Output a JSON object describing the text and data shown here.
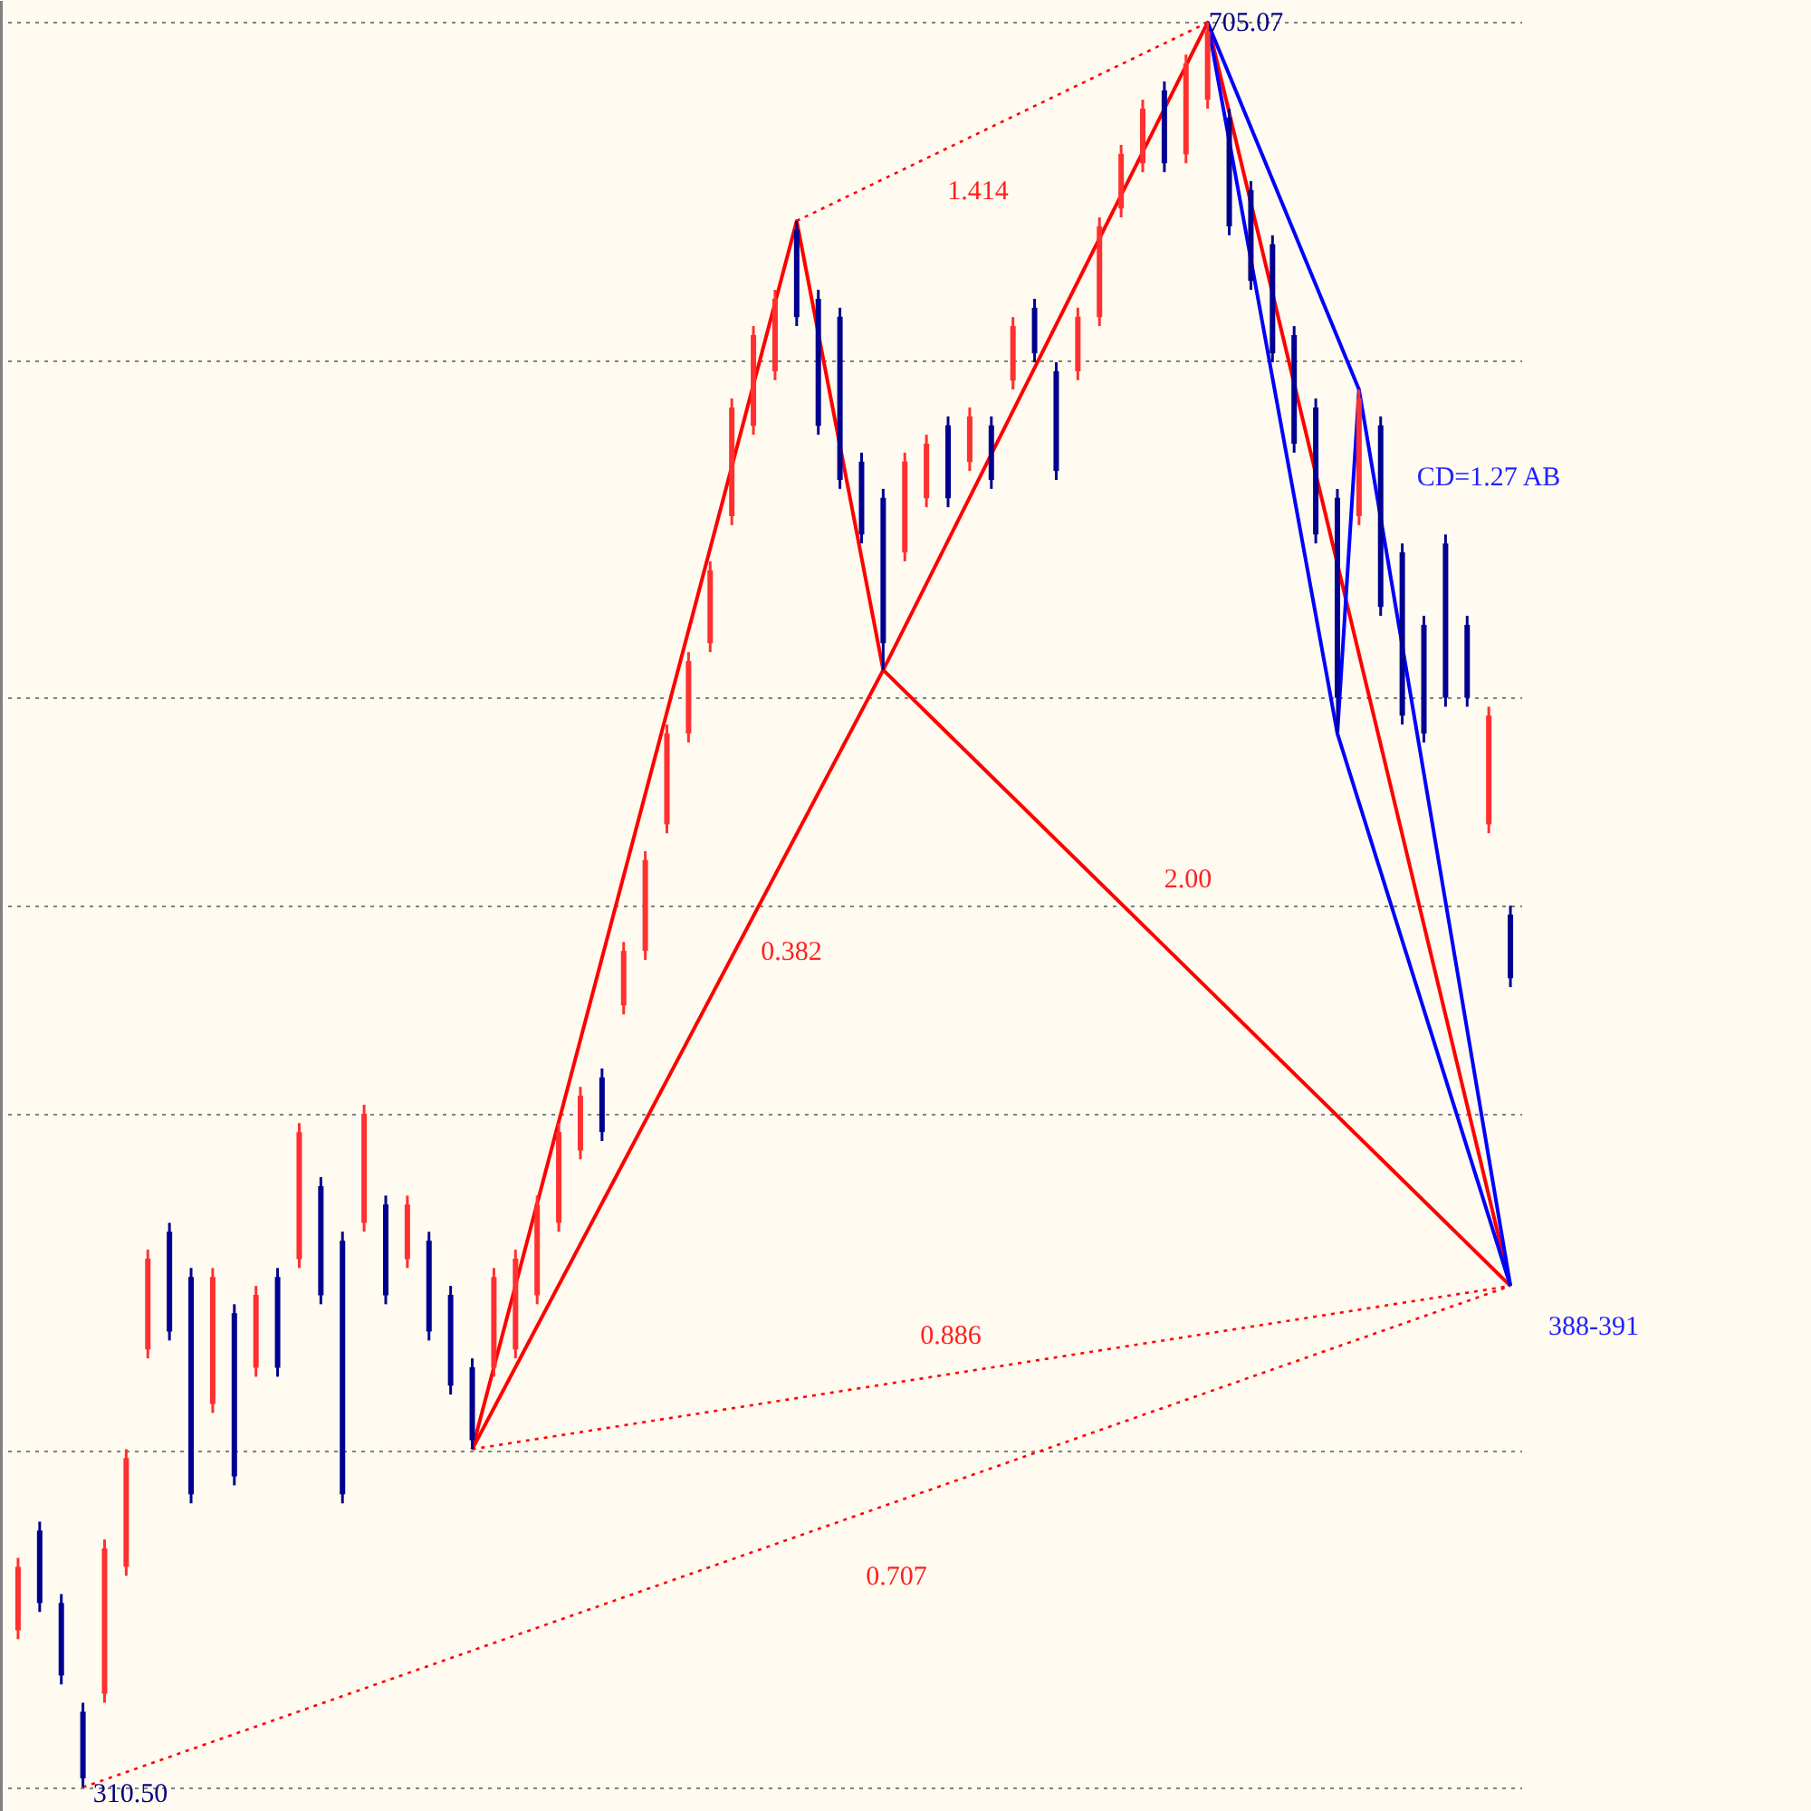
{
  "chart_data": {
    "type": "candlestick",
    "categories": [
      null,
      null,
      null,
      null,
      null,
      null,
      null,
      null,
      null,
      null,
      null,
      null,
      null,
      null,
      null,
      null,
      null,
      null,
      null,
      null,
      null,
      null,
      null,
      null,
      null,
      null,
      null,
      null,
      null,
      null,
      null,
      null,
      null,
      null,
      null,
      null,
      null,
      null,
      null,
      null,
      null,
      null,
      null,
      null,
      null,
      null,
      null,
      null,
      null,
      null,
      null,
      null,
      null,
      null,
      null,
      null,
      null,
      null,
      null,
      null,
      null,
      null,
      null,
      null,
      null,
      null,
      null,
      null,
      null,
      null
    ],
    "ohlc": [
      [
        345.6,
        361.8,
        343.6,
        359.8
      ],
      [
        367.9,
        369.9,
        349.7,
        351.7
      ],
      [
        351.7,
        353.7,
        333.5,
        335.5
      ],
      [
        327.4,
        329.4,
        310.5,
        312.5
      ],
      [
        331.4,
        365.9,
        329.4,
        363.9
      ],
      [
        359.8,
        386.1,
        357.8,
        384.1
      ],
      [
        408.4,
        430.7,
        406.4,
        428.7
      ],
      [
        434.7,
        436.7,
        410.4,
        412.4
      ],
      [
        424.6,
        426.6,
        374.0,
        376.0
      ],
      [
        396.2,
        426.6,
        394.2,
        424.6
      ],
      [
        416.5,
        418.5,
        378.0,
        380.0
      ],
      [
        404.3,
        422.6,
        402.3,
        420.6
      ],
      [
        424.6,
        426.6,
        402.3,
        404.3
      ],
      [
        428.6,
        459.0,
        426.6,
        457.0
      ],
      [
        444.9,
        446.9,
        418.5,
        420.5
      ],
      [
        432.7,
        434.7,
        374.0,
        376.0
      ],
      [
        436.7,
        463.1,
        434.7,
        461.1
      ],
      [
        440.8,
        442.8,
        418.5,
        420.5
      ],
      [
        428.6,
        442.8,
        426.6,
        440.8
      ],
      [
        432.7,
        434.7,
        410.4,
        412.4
      ],
      [
        420.6,
        422.6,
        398.3,
        400.3
      ],
      [
        404.4,
        406.4,
        386.1,
        388.1
      ],
      [
        404.3,
        426.6,
        402.3,
        424.6
      ],
      [
        408.4,
        430.7,
        406.4,
        428.7
      ],
      [
        420.5,
        442.8,
        418.5,
        440.8
      ],
      [
        436.7,
        459.0,
        434.7,
        457.0
      ],
      [
        452.9,
        467.1,
        450.9,
        465.1
      ],
      [
        469.2,
        471.2,
        455.0,
        457.0
      ],
      [
        485.3,
        499.5,
        483.3,
        497.5
      ],
      [
        497.5,
        519.8,
        495.5,
        517.8
      ],
      [
        525.8,
        548.1,
        523.8,
        546.1
      ],
      [
        546.1,
        564.3,
        544.1,
        562.3
      ],
      [
        566.3,
        584.6,
        564.3,
        582.6
      ],
      [
        594.7,
        621.0,
        592.7,
        619.0
      ],
      [
        614.9,
        637.2,
        612.9,
        635.2
      ],
      [
        627.1,
        645.3,
        625.1,
        643.3
      ],
      [
        658.7,
        660.7,
        637.2,
        639.2
      ],
      [
        643.3,
        645.3,
        612.9,
        614.9
      ],
      [
        639.3,
        641.3,
        600.8,
        602.8
      ],
      [
        606.9,
        608.9,
        588.6,
        590.6
      ],
      [
        598.8,
        600.8,
        560.3,
        566.3
      ],
      [
        586.6,
        608.9,
        584.6,
        606.9
      ],
      [
        598.7,
        612.9,
        596.7,
        610.9
      ],
      [
        615.0,
        617.0,
        596.7,
        598.7
      ],
      [
        606.8,
        619.0,
        604.8,
        617.0
      ],
      [
        615.0,
        617.0,
        600.8,
        602.8
      ],
      [
        625.0,
        639.2,
        623.0,
        637.2
      ],
      [
        641.3,
        643.3,
        629.1,
        631.1
      ],
      [
        627.1,
        629.1,
        602.8,
        604.8
      ],
      [
        627.1,
        641.3,
        625.1,
        639.3
      ],
      [
        639.2,
        661.5,
        637.2,
        659.5
      ],
      [
        663.5,
        677.7,
        661.5,
        675.7
      ],
      [
        673.6,
        687.8,
        671.6,
        685.8
      ],
      [
        689.9,
        691.9,
        671.6,
        673.6
      ],
      [
        675.6,
        697.9,
        673.6,
        695.9
      ],
      [
        687.8,
        705.07,
        685.8,
        703.1
      ],
      [
        683.8,
        685.8,
        657.5,
        659.5
      ],
      [
        667.6,
        669.6,
        645.3,
        647.3
      ],
      [
        655.5,
        657.5,
        629.1,
        631.1
      ],
      [
        635.2,
        637.2,
        608.9,
        610.9
      ],
      [
        619.0,
        621.0,
        588.6,
        590.6
      ],
      [
        598.8,
        600.8,
        546.1,
        554.1
      ],
      [
        594.7,
        623.0,
        592.7,
        621.0
      ],
      [
        615.0,
        617.0,
        572.4,
        574.4
      ],
      [
        586.6,
        588.6,
        548.1,
        550.1
      ],
      [
        570.4,
        572.4,
        544.1,
        546.1
      ],
      [
        588.6,
        590.6,
        552.1,
        554.1
      ],
      [
        570.4,
        572.4,
        552.1,
        554.1
      ],
      [
        525.8,
        552.1,
        523.8,
        550.1
      ],
      [
        505.6,
        507.6,
        489.4,
        491.4
      ]
    ],
    "colors": [
      "#ff3030",
      "#000090",
      "#000090",
      "#000090",
      "#ff3030",
      "#ff3030",
      "#ff3030",
      "#000090",
      "#000090",
      "#ff3030",
      "#000090",
      "#ff3030",
      "#000090",
      "#ff3030",
      "#000090",
      "#000090",
      "#ff3030",
      "#000090",
      "#ff3030",
      "#000090",
      "#000090",
      "#000090",
      "#ff3030",
      "#ff3030",
      "#ff3030",
      "#ff3030",
      "#ff3030",
      "#000090",
      "#ff3030",
      "#ff3030",
      "#ff3030",
      "#ff3030",
      "#ff3030",
      "#ff3030",
      "#ff3030",
      "#ff3030",
      "#000090",
      "#000090",
      "#000090",
      "#000090",
      "#000090",
      "#ff3030",
      "#ff3030",
      "#000090",
      "#ff3030",
      "#000090",
      "#ff3030",
      "#000090",
      "#000090",
      "#ff3030",
      "#ff3030",
      "#ff3030",
      "#ff3030",
      "#000090",
      "#ff3030",
      "#ff3030",
      "#000090",
      "#000090",
      "#000090",
      "#000090",
      "#000090",
      "#000090",
      "#ff3030",
      "#000090",
      "#000090",
      "#000090",
      "#000090",
      "#000090",
      "#ff3030",
      "#000090"
    ],
    "series": [
      {
        "type": "line",
        "color": "#ff0000",
        "line_style": "solid",
        "values": [
          null,
          null,
          null,
          null,
          null,
          null,
          null,
          null,
          null,
          null,
          null,
          null,
          null,
          null,
          null,
          null,
          null,
          null,
          null,
          null,
          null,
          386.1,
          null,
          null,
          null,
          null,
          null,
          null,
          null,
          null,
          null,
          null,
          null,
          null,
          null,
          null,
          660.7,
          null,
          null,
          null,
          560.3,
          null,
          null,
          null,
          null,
          null,
          null,
          null,
          null,
          null,
          null,
          null,
          null,
          null,
          null,
          705.07,
          null,
          null,
          null,
          null,
          null,
          null,
          null,
          null,
          null,
          null,
          null,
          null,
          null,
          422.6
        ]
      },
      {
        "type": "line",
        "color": "#ff0000",
        "line_style": "solid",
        "values": [
          null,
          null,
          null,
          null,
          null,
          null,
          null,
          null,
          null,
          null,
          null,
          null,
          null,
          null,
          null,
          null,
          null,
          null,
          null,
          null,
          null,
          386.1,
          null,
          null,
          null,
          null,
          null,
          null,
          null,
          null,
          null,
          null,
          null,
          null,
          null,
          null,
          null,
          null,
          null,
          null,
          560.3,
          null,
          null,
          null,
          null,
          null,
          null,
          null,
          null,
          null,
          null,
          null,
          null,
          null,
          null,
          null,
          null,
          null,
          null,
          null,
          null,
          null,
          null,
          null,
          null,
          null,
          null,
          null,
          null,
          422.6
        ]
      },
      {
        "type": "line",
        "color": "#ff0000",
        "line_style": "dotted",
        "values": [
          null,
          null,
          null,
          null,
          null,
          null,
          null,
          null,
          null,
          null,
          null,
          null,
          null,
          null,
          null,
          null,
          null,
          null,
          null,
          null,
          null,
          null,
          null,
          null,
          null,
          null,
          null,
          null,
          null,
          null,
          null,
          null,
          null,
          null,
          null,
          null,
          660.7,
          null,
          null,
          null,
          null,
          null,
          null,
          null,
          null,
          null,
          null,
          null,
          null,
          null,
          null,
          null,
          null,
          null,
          null,
          705.07,
          null,
          null,
          null,
          null,
          null,
          null,
          null,
          null,
          null,
          null,
          null,
          null,
          null,
          null
        ]
      },
      {
        "type": "line",
        "color": "#ff0000",
        "line_style": "dotted",
        "values": [
          null,
          null,
          null,
          null,
          null,
          null,
          null,
          null,
          null,
          null,
          null,
          null,
          null,
          null,
          null,
          null,
          null,
          null,
          null,
          null,
          null,
          386.1,
          null,
          null,
          null,
          null,
          null,
          null,
          null,
          null,
          null,
          null,
          null,
          null,
          null,
          null,
          null,
          null,
          null,
          null,
          null,
          null,
          null,
          null,
          null,
          null,
          null,
          null,
          null,
          null,
          null,
          null,
          null,
          null,
          null,
          null,
          null,
          null,
          null,
          null,
          null,
          null,
          null,
          null,
          null,
          null,
          null,
          null,
          null,
          422.6
        ]
      },
      {
        "type": "line",
        "color": "#ff0000",
        "line_style": "dotted",
        "values": [
          null,
          null,
          null,
          310.5,
          null,
          null,
          null,
          null,
          null,
          null,
          null,
          null,
          null,
          null,
          null,
          null,
          null,
          null,
          null,
          null,
          null,
          null,
          null,
          null,
          null,
          null,
          null,
          null,
          null,
          null,
          null,
          null,
          null,
          null,
          null,
          null,
          null,
          null,
          null,
          null,
          null,
          null,
          null,
          null,
          null,
          null,
          null,
          null,
          null,
          null,
          null,
          null,
          null,
          null,
          null,
          null,
          null,
          null,
          null,
          null,
          null,
          null,
          null,
          null,
          null,
          null,
          null,
          null,
          null,
          422.6
        ]
      },
      {
        "type": "line",
        "color": "#0000ff",
        "line_style": "solid",
        "values": [
          null,
          null,
          null,
          null,
          null,
          null,
          null,
          null,
          null,
          null,
          null,
          null,
          null,
          null,
          null,
          null,
          null,
          null,
          null,
          null,
          null,
          null,
          null,
          null,
          null,
          null,
          null,
          null,
          null,
          null,
          null,
          null,
          null,
          null,
          null,
          null,
          null,
          null,
          null,
          null,
          null,
          null,
          null,
          null,
          null,
          null,
          null,
          null,
          null,
          null,
          null,
          null,
          null,
          null,
          null,
          705.07,
          null,
          null,
          null,
          null,
          null,
          546.1,
          623.0,
          null,
          null,
          null,
          null,
          null,
          null,
          422.6
        ]
      },
      {
        "type": "line",
        "color": "#0000ff",
        "line_style": "solid",
        "values": [
          null,
          null,
          null,
          null,
          null,
          null,
          null,
          null,
          null,
          null,
          null,
          null,
          null,
          null,
          null,
          null,
          null,
          null,
          null,
          null,
          null,
          null,
          null,
          null,
          null,
          null,
          null,
          null,
          null,
          null,
          null,
          null,
          null,
          null,
          null,
          null,
          null,
          null,
          null,
          null,
          null,
          null,
          null,
          null,
          null,
          null,
          null,
          null,
          null,
          null,
          null,
          null,
          null,
          null,
          null,
          705.07,
          null,
          null,
          null,
          null,
          null,
          null,
          623.0,
          null,
          null,
          null,
          null,
          null,
          null,
          null
        ]
      },
      {
        "type": "line",
        "color": "#0000ff",
        "line_style": "solid",
        "values": [
          null,
          null,
          null,
          null,
          null,
          null,
          null,
          null,
          null,
          null,
          null,
          null,
          null,
          null,
          null,
          null,
          null,
          null,
          null,
          null,
          null,
          null,
          null,
          null,
          null,
          null,
          null,
          null,
          null,
          null,
          null,
          null,
          null,
          null,
          null,
          null,
          null,
          null,
          null,
          null,
          null,
          null,
          null,
          null,
          null,
          null,
          null,
          null,
          null,
          null,
          null,
          null,
          null,
          null,
          null,
          null,
          null,
          null,
          null,
          null,
          null,
          546.1,
          null,
          null,
          null,
          null,
          null,
          null,
          null,
          422.6
        ]
      }
    ],
    "annotations": [
      "1.414",
      "0.382",
      "2.00",
      "0.886",
      "0.707",
      "CD=1.27 AB",
      "705.07",
      "310.50",
      "388-391"
    ],
    "ylim": [
      305.2,
      710.1
    ],
    "yticks": [
      {
        "value": 705.07,
        "label": null
      },
      {
        "value": 629.71,
        "label": null
      },
      {
        "value": 554.34,
        "label": null
      },
      {
        "value": 507.79,
        "label": null
      },
      {
        "value": 461.23,
        "label": null
      },
      {
        "value": 385.86,
        "label": null
      },
      {
        "value": 310.5,
        "label": null
      }
    ],
    "grid": "y"
  }
}
